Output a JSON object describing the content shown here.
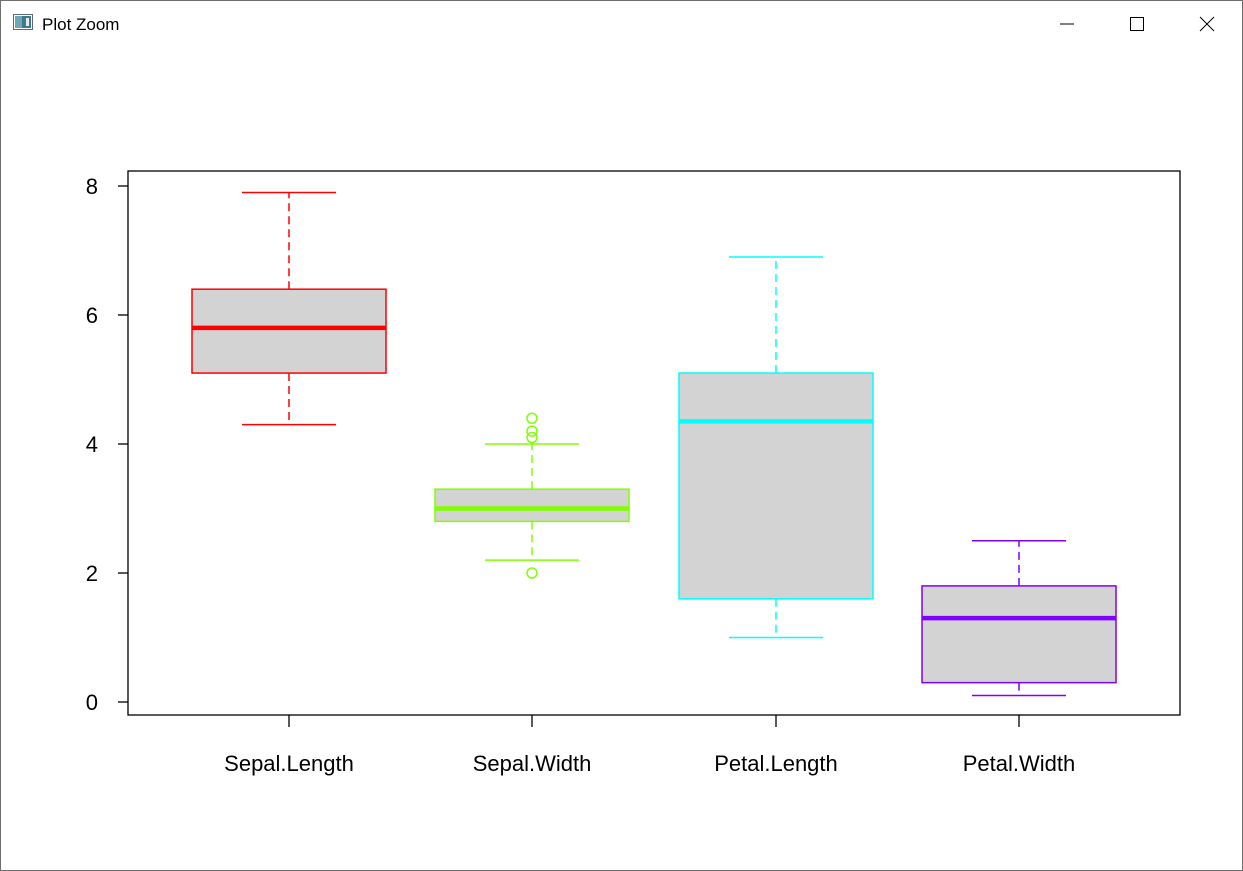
{
  "window": {
    "title": "Plot Zoom",
    "icons": {
      "app": "plot-window-icon",
      "minimize": "minimize-icon",
      "maximize": "maximize-icon",
      "close": "close-icon"
    }
  },
  "chart_data": {
    "type": "boxplot",
    "title": "",
    "xlabel": "",
    "ylabel": "",
    "ylim": [
      0,
      8.4
    ],
    "yticks": [
      0,
      2,
      4,
      6,
      8
    ],
    "categories": [
      "Sepal.Length",
      "Sepal.Width",
      "Petal.Length",
      "Petal.Width"
    ],
    "boxes": [
      {
        "category": "Sepal.Length",
        "color": "#ff0000",
        "whisker_low": 4.3,
        "q1": 5.1,
        "median": 5.8,
        "q3": 6.4,
        "whisker_high": 7.9,
        "outliers": []
      },
      {
        "category": "Sepal.Width",
        "color": "#80ff00",
        "whisker_low": 2.2,
        "q1": 2.8,
        "median": 3.0,
        "q3": 3.3,
        "whisker_high": 4.0,
        "outliers": [
          2.0,
          4.1,
          4.2,
          4.4
        ]
      },
      {
        "category": "Petal.Length",
        "color": "#00ffff",
        "whisker_low": 1.0,
        "q1": 1.6,
        "median": 4.35,
        "q3": 5.1,
        "whisker_high": 6.9,
        "outliers": []
      },
      {
        "category": "Petal.Width",
        "color": "#8000ff",
        "whisker_low": 0.1,
        "q1": 0.3,
        "median": 1.3,
        "q3": 1.8,
        "whisker_high": 2.5,
        "outliers": []
      }
    ],
    "box_fill": "#d3d3d3",
    "grid": false,
    "legend": "none"
  }
}
